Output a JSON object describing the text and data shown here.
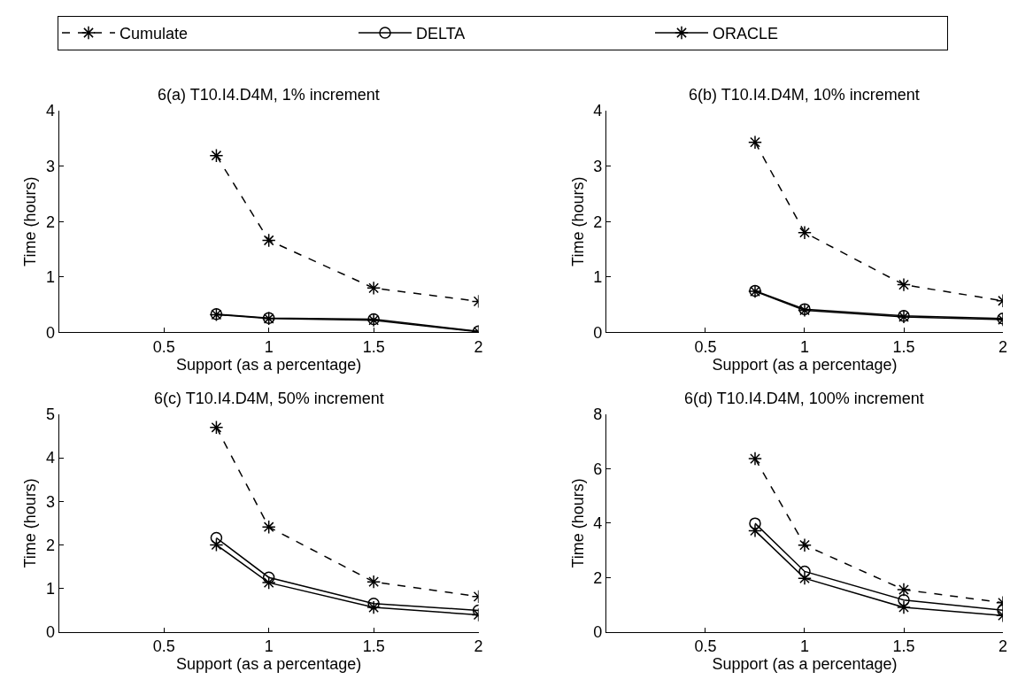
{
  "chart_data": [
    {
      "type": "line",
      "title": "6(a) T10.I4.D4M, 1% increment",
      "xlabel": "Support (as a percentage)",
      "ylabel": "Time (hours)",
      "x": [
        0.75,
        1,
        1.5,
        2
      ],
      "xlim": [
        0,
        2
      ],
      "xticks": [
        0.5,
        1,
        1.5,
        2
      ],
      "ylim": [
        0,
        4
      ],
      "yticks": [
        0,
        1,
        2,
        3,
        4
      ],
      "legend": "top",
      "series": [
        {
          "name": "Cumulate",
          "color": "#000000",
          "marker": "cross",
          "line_style": "dashed",
          "values": [
            3.19,
            1.66,
            0.8,
            0.56
          ]
        },
        {
          "name": "DELTA",
          "color": "#000000",
          "marker": "circle",
          "line_style": "solid",
          "values": [
            0.33,
            0.26,
            0.24,
            0.02
          ]
        },
        {
          "name": "ORACLE",
          "color": "#000000",
          "marker": "cross",
          "line_style": "solid",
          "values": [
            0.32,
            0.25,
            0.22,
            0.01
          ]
        }
      ]
    },
    {
      "type": "line",
      "title": "6(b) T10.I4.D4M, 10% increment",
      "xlabel": "Support (as a percentage)",
      "ylabel": "Time (hours)",
      "x": [
        0.75,
        1,
        1.5,
        2
      ],
      "xlim": [
        0,
        2
      ],
      "xticks": [
        0.5,
        1,
        1.5,
        2
      ],
      "ylim": [
        0,
        4
      ],
      "yticks": [
        0,
        1,
        2,
        3,
        4
      ],
      "series": [
        {
          "color": "#000000",
          "marker": "cross",
          "line_style": "dashed",
          "values": [
            3.43,
            1.8,
            0.86,
            0.57
          ]
        },
        {
          "color": "#000000",
          "marker": "circle",
          "line_style": "solid",
          "values": [
            0.75,
            0.42,
            0.3,
            0.25
          ]
        },
        {
          "color": "#000000",
          "marker": "cross",
          "line_style": "solid",
          "values": [
            0.74,
            0.4,
            0.28,
            0.23
          ]
        }
      ]
    },
    {
      "type": "line",
      "title": "6(c) T10.I4.D4M, 50% increment",
      "xlabel": "Support (as a percentage)",
      "ylabel": "Time (hours)",
      "x": [
        0.75,
        1,
        1.5,
        2
      ],
      "xlim": [
        0,
        2
      ],
      "xticks": [
        0.5,
        1,
        1.5,
        2
      ],
      "ylim": [
        0,
        5
      ],
      "yticks": [
        0,
        1,
        2,
        3,
        4,
        5
      ],
      "series": [
        {
          "color": "#000000",
          "marker": "cross",
          "line_style": "dashed",
          "values": [
            4.7,
            2.41,
            1.15,
            0.81
          ]
        },
        {
          "color": "#000000",
          "marker": "circle",
          "line_style": "solid",
          "values": [
            2.16,
            1.25,
            0.65,
            0.49
          ]
        },
        {
          "color": "#000000",
          "marker": "cross",
          "line_style": "solid",
          "values": [
            2.0,
            1.13,
            0.56,
            0.39
          ]
        }
      ]
    },
    {
      "type": "line",
      "title": "6(d) T10.I4.D4M, 100% increment",
      "xlabel": "Support (as a percentage)",
      "ylabel": "Time (hours)",
      "x": [
        0.75,
        1,
        1.5,
        2
      ],
      "xlim": [
        0,
        2
      ],
      "xticks": [
        0.5,
        1,
        1.5,
        2
      ],
      "ylim": [
        0,
        8
      ],
      "yticks": [
        0,
        2,
        4,
        6,
        8
      ],
      "series": [
        {
          "color": "#000000",
          "marker": "cross",
          "line_style": "dashed",
          "values": [
            6.37,
            3.19,
            1.55,
            1.07
          ]
        },
        {
          "color": "#000000",
          "marker": "circle",
          "line_style": "solid",
          "values": [
            3.99,
            2.22,
            1.17,
            0.79
          ]
        },
        {
          "color": "#000000",
          "marker": "cross",
          "line_style": "solid",
          "values": [
            3.72,
            1.97,
            0.9,
            0.6
          ]
        }
      ]
    }
  ]
}
